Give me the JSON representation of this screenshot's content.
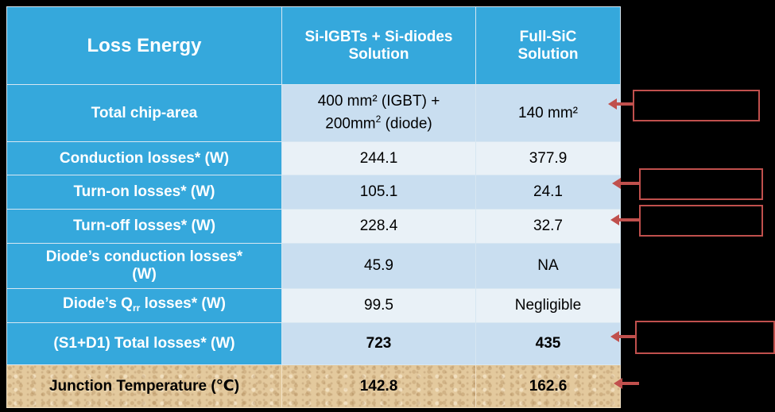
{
  "table": {
    "header": {
      "col1": "Loss Energy",
      "col2_line1": "Si-IGBTs + Si-diodes",
      "col2_line2": "Solution",
      "col3_line1": "Full-SiC",
      "col3_line2": "Solution"
    },
    "rows": [
      {
        "label": "Total chip-area",
        "si_line1": "400 mm² (IGBT) +",
        "si_line2a": "200mm",
        "si_line2_sup": "2",
        "si_line2b": " (diode)",
        "sic": "140 mm²"
      },
      {
        "label": "Conduction losses* (W)",
        "si": "244.1",
        "sic": "377.9"
      },
      {
        "label": "Turn-on losses* (W)",
        "si": "105.1",
        "sic": "24.1"
      },
      {
        "label": "Turn-off losses* (W)",
        "si": "228.4",
        "sic": "32.7"
      },
      {
        "label_line1": "Diode’s conduction losses*",
        "label_line2": "(W)",
        "si": "45.9",
        "sic": "NA"
      },
      {
        "label_pre": "Diode’s Q",
        "label_sub": "rr",
        "label_post": " losses* (W)",
        "si": "99.5",
        "sic": "Negligible"
      },
      {
        "label": "(S1+D1) Total losses* (W)",
        "si": "723",
        "sic": "435"
      },
      {
        "label": "Junction Temperature (℃)",
        "si": "142.8",
        "sic": "162.6"
      }
    ]
  },
  "colors": {
    "header_blue": "#35a8dc",
    "light_row": "#e9f1f7",
    "dark_row": "#c9def0",
    "callout_red": "#c0504d",
    "sand": "#e3c99d"
  }
}
